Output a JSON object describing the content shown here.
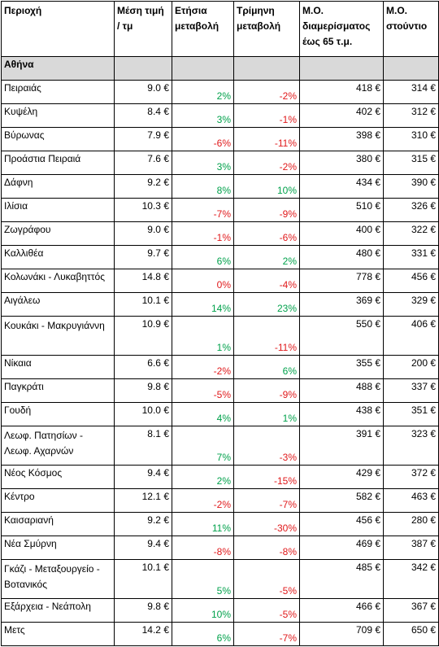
{
  "headers": {
    "area": "Περιοχή",
    "avg_price": "Μέση τιμή / τμ",
    "annual_change": "Ετήσια μεταβολή",
    "quarter_change": "Τρίμηνη μεταβολή",
    "avg_apartment": "Μ.Ο. διαμερίσματος έως 65 τ.μ.",
    "avg_studio": "Μ.Ο. στούντιο"
  },
  "section_title": "Αθήνα",
  "colors": {
    "positive": "#00a14b",
    "negative": "#e0191b",
    "section_bg": "#d9d9d9"
  },
  "rows": [
    {
      "area": "Πειραιάς",
      "price": "9.0 €",
      "annual": "2%",
      "quarter": "-2%",
      "apt": "418 €",
      "studio": "314 €"
    },
    {
      "area": "Κυψέλη",
      "price": "8.4 €",
      "annual": "3%",
      "quarter": "-1%",
      "apt": "402 €",
      "studio": "312 €"
    },
    {
      "area": "Βύρωνας",
      "price": "7.9 €",
      "annual": "-6%",
      "quarter": "-11%",
      "apt": "398 €",
      "studio": "310 €"
    },
    {
      "area": "Προάστια Πειραιά",
      "price": "7.6 €",
      "annual": "3%",
      "quarter": "-2%",
      "apt": "380 €",
      "studio": "315 €"
    },
    {
      "area": "Δάφνη",
      "price": "9.2 €",
      "annual": "8%",
      "quarter": "10%",
      "apt": "434 €",
      "studio": "390 €"
    },
    {
      "area": "Ιλίσια",
      "price": "10.3 €",
      "annual": "-7%",
      "quarter": "-9%",
      "apt": "510 €",
      "studio": "326 €"
    },
    {
      "area": "Ζωγράφου",
      "price": "9.0 €",
      "annual": "-1%",
      "quarter": "-6%",
      "apt": "400 €",
      "studio": "322 €"
    },
    {
      "area": "Καλλιθέα",
      "price": "9.7 €",
      "annual": "6%",
      "quarter": "2%",
      "apt": "480 €",
      "studio": "331 €"
    },
    {
      "area": "Κολωνάκι - Λυκαβηττός",
      "price": "14.8 €",
      "annual": "0%",
      "quarter": "-4%",
      "apt": "778 €",
      "studio": "456 €"
    },
    {
      "area": "Αιγάλεω",
      "price": "10.1 €",
      "annual": "14%",
      "quarter": "23%",
      "apt": "369 €",
      "studio": "329 €"
    },
    {
      "area": "Κουκάκι - Μακρυγιάννη",
      "price": "10.9 €",
      "annual": "1%",
      "quarter": "-11%",
      "apt": "550 €",
      "studio": "406 €"
    },
    {
      "area": "Νίκαια",
      "price": "6.6 €",
      "annual": "-2%",
      "quarter": "6%",
      "apt": "355 €",
      "studio": "200 €"
    },
    {
      "area": "Παγκράτι",
      "price": "9.8 €",
      "annual": "-5%",
      "quarter": "-9%",
      "apt": "488 €",
      "studio": "337 €"
    },
    {
      "area": "Γουδή",
      "price": "10.0 €",
      "annual": "4%",
      "quarter": "1%",
      "apt": "438 €",
      "studio": "351 €"
    },
    {
      "area": "Λεωφ. Πατησίων - Λεωφ. Αχαρνών",
      "price": "8.1 €",
      "annual": "7%",
      "quarter": "-3%",
      "apt": "391 €",
      "studio": "323 €"
    },
    {
      "area": "Νέος Κόσμος",
      "price": "9.4 €",
      "annual": "2%",
      "quarter": "-15%",
      "apt": "429 €",
      "studio": "372 €"
    },
    {
      "area": "Κέντρο",
      "price": "12.1 €",
      "annual": "-2%",
      "quarter": "-7%",
      "apt": "582 €",
      "studio": "463 €"
    },
    {
      "area": "Καισαριανή",
      "price": "9.2 €",
      "annual": "11%",
      "quarter": "-30%",
      "apt": "456 €",
      "studio": "280 €"
    },
    {
      "area": "Νέα Σμύρνη",
      "price": "9.4 €",
      "annual": "-8%",
      "quarter": "-8%",
      "apt": "469 €",
      "studio": "387 €"
    },
    {
      "area": "Γκάζι - Μεταξουργείο - Βοτανικός",
      "price": "10.1 €",
      "annual": "5%",
      "quarter": "-5%",
      "apt": "485 €",
      "studio": "342 €"
    },
    {
      "area": "Εξάρχεια - Νεάπολη",
      "price": "9.8 €",
      "annual": "10%",
      "quarter": "-5%",
      "apt": "466 €",
      "studio": "367 €"
    },
    {
      "area": "Μετς",
      "price": "14.2 €",
      "annual": "6%",
      "quarter": "-7%",
      "apt": "709 €",
      "studio": "650 €"
    }
  ]
}
